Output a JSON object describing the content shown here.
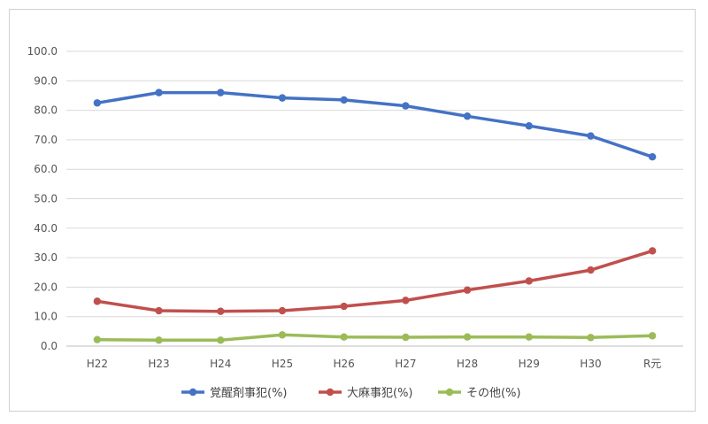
{
  "chart_data": {
    "type": "line",
    "categories": [
      "H22",
      "H23",
      "H24",
      "H25",
      "H26",
      "H27",
      "H28",
      "H29",
      "H30",
      "R元"
    ],
    "series": [
      {
        "name": "覚醒剤事犯(%)",
        "color": "#4472C4",
        "values": [
          82.5,
          86.0,
          86.0,
          84.2,
          83.5,
          81.5,
          78.0,
          74.7,
          71.3,
          64.2
        ]
      },
      {
        "name": "大麻事犯(%)",
        "color": "#C0504D",
        "values": [
          15.2,
          12.0,
          11.8,
          12.0,
          13.5,
          15.5,
          19.0,
          22.1,
          25.8,
          32.3
        ]
      },
      {
        "name": "その他(%)",
        "color": "#9BBB59",
        "values": [
          2.2,
          2.0,
          2.0,
          3.8,
          3.1,
          3.0,
          3.1,
          3.1,
          2.9,
          3.5
        ]
      }
    ],
    "yticks": [
      "100.0",
      "90.0",
      "80.0",
      "70.0",
      "60.0",
      "50.0",
      "40.0",
      "30.0",
      "20.0",
      "10.0",
      "0.0"
    ],
    "ylim": [
      0,
      100
    ],
    "grid": true,
    "legend": "bottom"
  }
}
